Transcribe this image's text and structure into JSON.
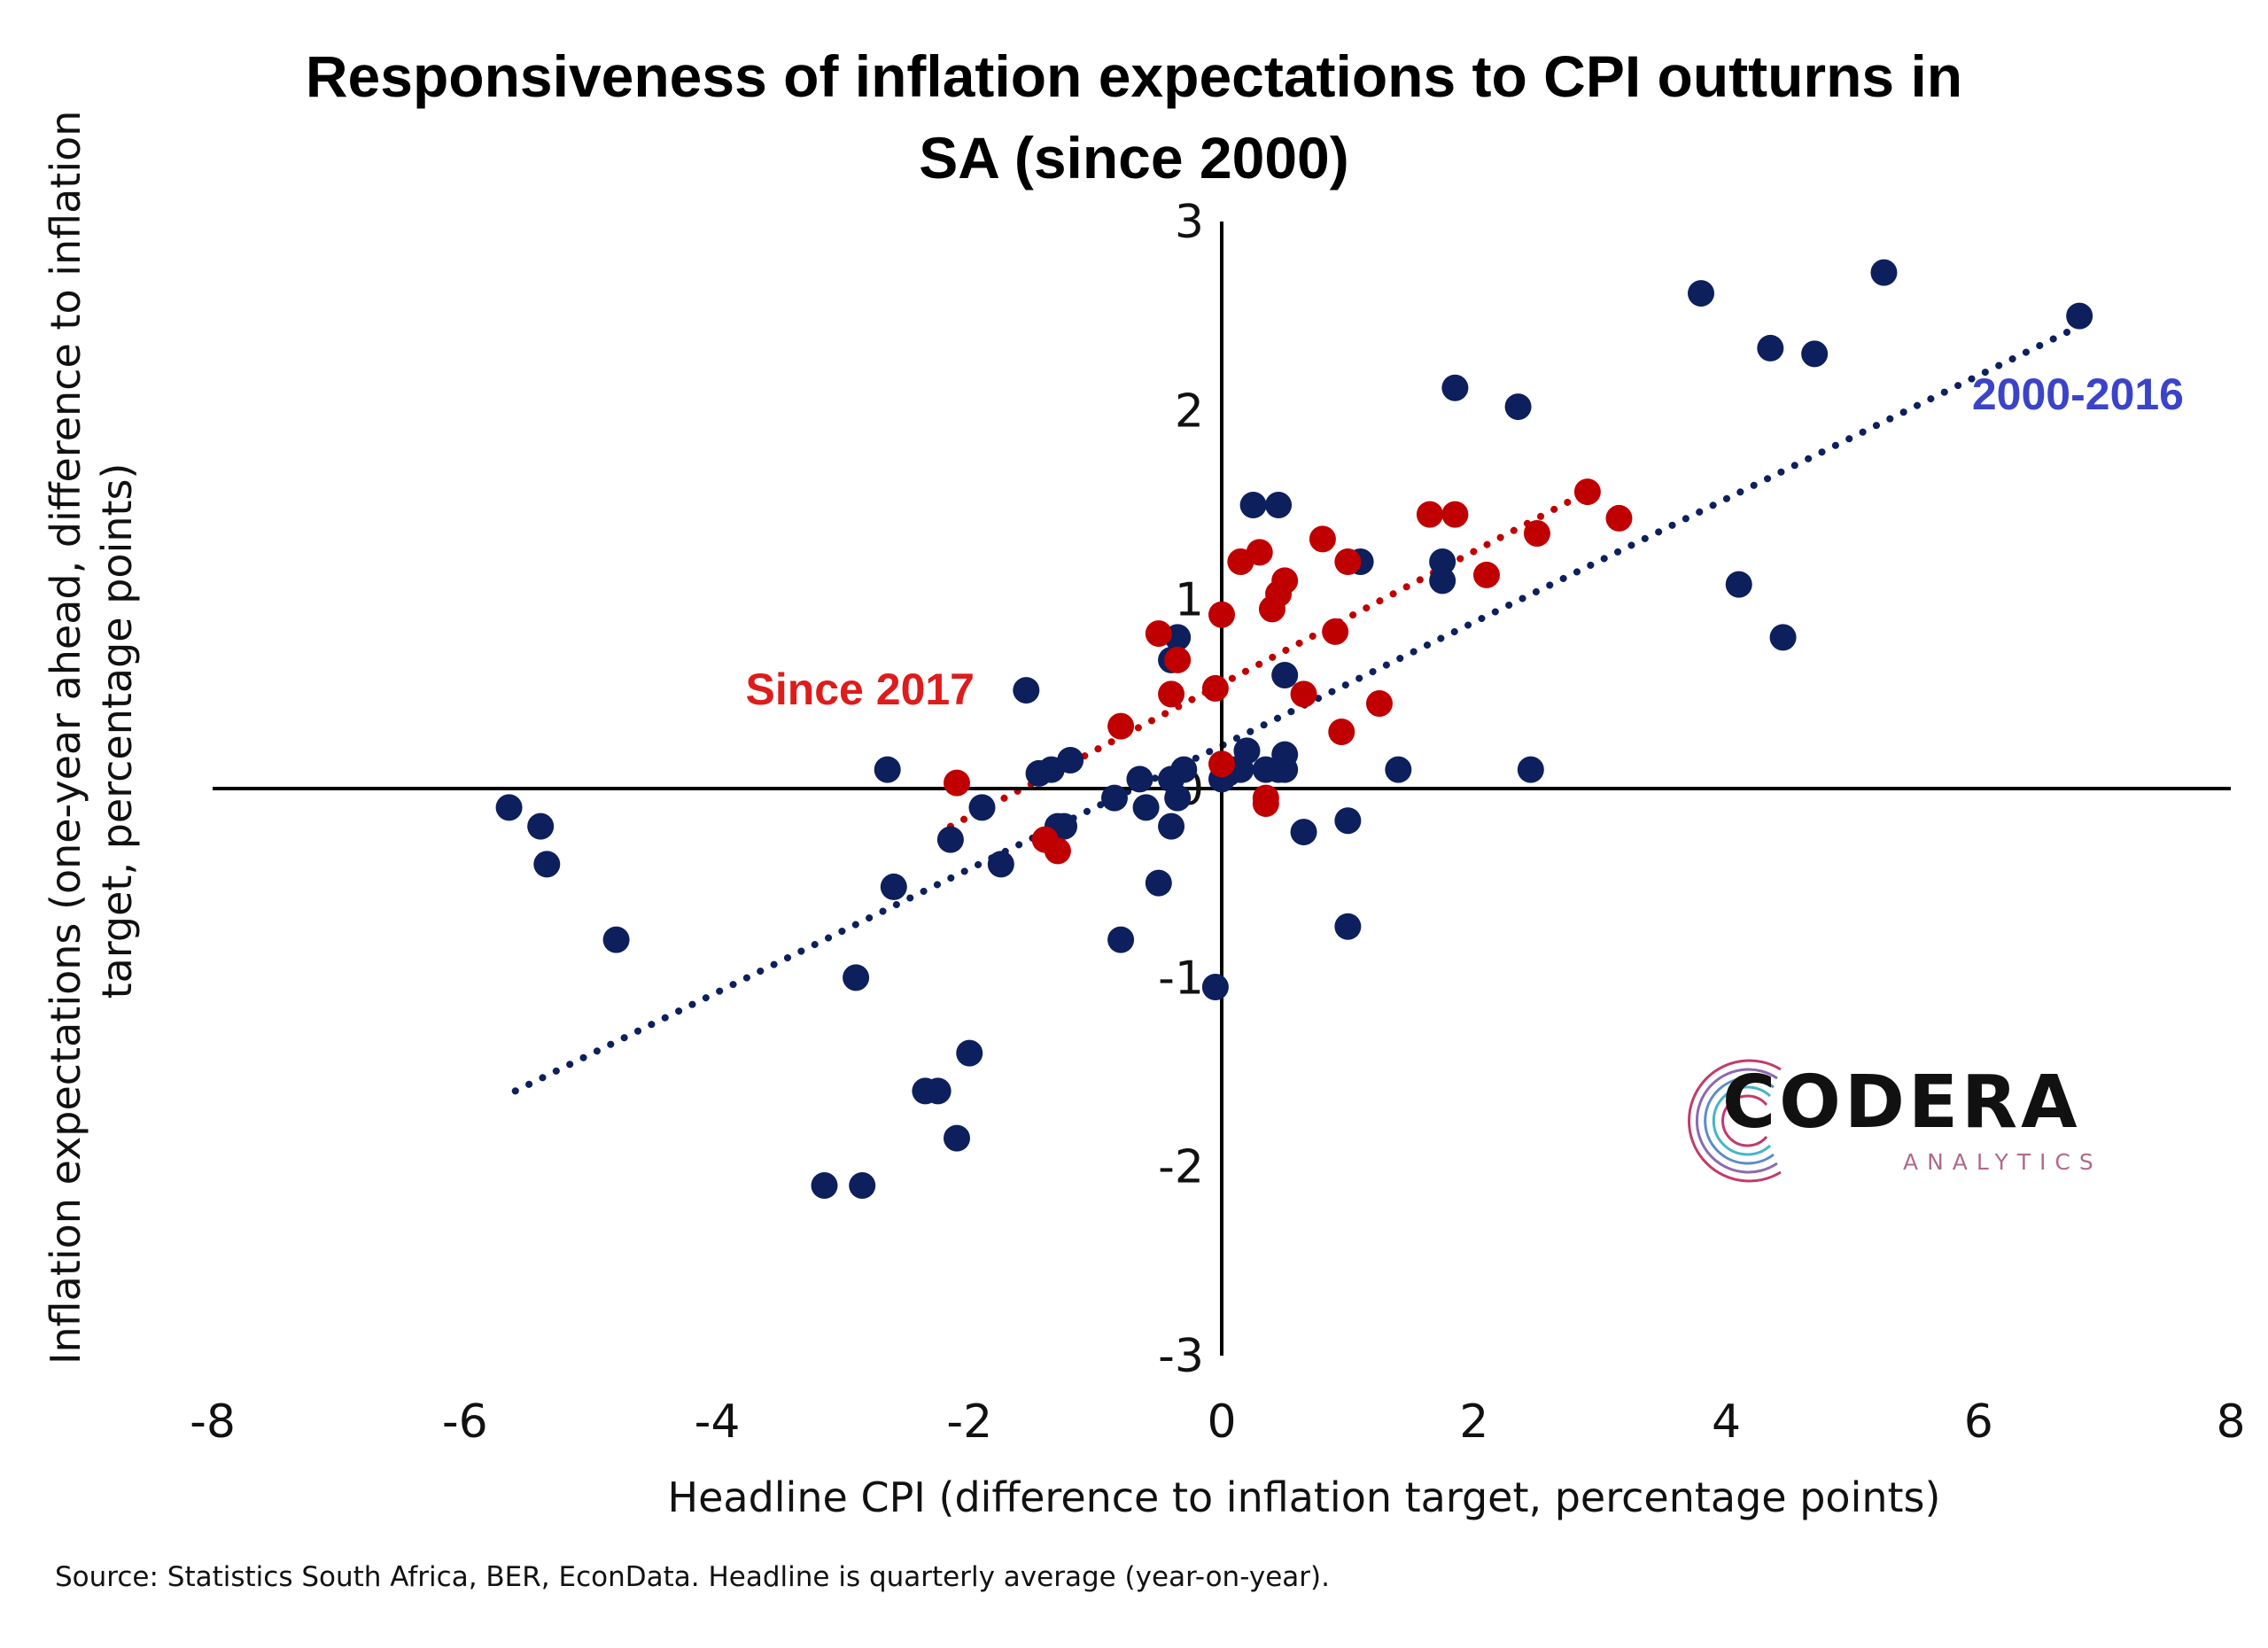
{
  "chart_data": {
    "type": "scatter",
    "title": [
      "Responsiveness of inflation expectations to CPI outturns in",
      "SA (since 2000)"
    ],
    "xlabel": "Headline CPI (difference to inflation target, percentage points)",
    "ylabel": [
      "Inflation expectations (one-year ahead, difference to inflation",
      "target, percentage points)"
    ],
    "xlim": [
      -8,
      8
    ],
    "ylim": [
      -3,
      3
    ],
    "xticks": [
      "-8",
      "-6",
      "-4",
      "-2",
      "0",
      "2",
      "4",
      "6",
      "8"
    ],
    "yticks": [
      "3",
      "2",
      "1",
      "0",
      "-1",
      "-2",
      "-3"
    ],
    "xtick_values": [
      -8,
      -6,
      -4,
      -2,
      0,
      2,
      4,
      6,
      8
    ],
    "ytick_values": [
      3,
      2,
      1,
      0,
      -1,
      -2,
      -3
    ],
    "series": [
      {
        "name": "2000-2016",
        "color": "#0d1f5c",
        "label_color": "#3b44c8",
        "trendline": [
          [
            -5.6,
            -1.6
          ],
          [
            6.75,
            2.43
          ]
        ],
        "points": [
          [
            -5.65,
            -0.1
          ],
          [
            -5.4,
            -0.2
          ],
          [
            -5.35,
            -0.4
          ],
          [
            -4.8,
            -0.8
          ],
          [
            -2.9,
            -1.0
          ],
          [
            -3.15,
            -2.1
          ],
          [
            -2.85,
            -2.1
          ],
          [
            -2.35,
            -1.6
          ],
          [
            -2.25,
            -1.6
          ],
          [
            -2.1,
            -1.85
          ],
          [
            -2.0,
            -1.4
          ],
          [
            -2.65,
            0.1
          ],
          [
            -2.6,
            -0.52
          ],
          [
            -2.15,
            -0.27
          ],
          [
            -1.9,
            -0.1
          ],
          [
            -1.75,
            -0.4
          ],
          [
            -1.55,
            0.52
          ],
          [
            -1.45,
            0.08
          ],
          [
            -1.35,
            0.1
          ],
          [
            -1.3,
            -0.2
          ],
          [
            -1.25,
            -0.2
          ],
          [
            -1.2,
            0.15
          ],
          [
            -0.85,
            -0.05
          ],
          [
            -0.8,
            -0.8
          ],
          [
            -0.65,
            0.05
          ],
          [
            -0.6,
            -0.1
          ],
          [
            -0.5,
            -0.5
          ],
          [
            -0.4,
            0.05
          ],
          [
            -0.4,
            -0.2
          ],
          [
            -0.35,
            -0.05
          ],
          [
            -0.3,
            0.1
          ],
          [
            -0.35,
            0.8
          ],
          [
            -0.4,
            0.68
          ],
          [
            -0.05,
            -1.05
          ],
          [
            0.0,
            0.05
          ],
          [
            0.05,
            0.08
          ],
          [
            0.1,
            0.1
          ],
          [
            0.15,
            0.1
          ],
          [
            0.2,
            0.2
          ],
          [
            0.25,
            1.5
          ],
          [
            0.35,
            0.1
          ],
          [
            0.45,
            1.5
          ],
          [
            0.45,
            0.1
          ],
          [
            0.5,
            0.6
          ],
          [
            0.5,
            0.18
          ],
          [
            0.5,
            0.1
          ],
          [
            0.65,
            -0.23
          ],
          [
            1.0,
            -0.17
          ],
          [
            1.0,
            -0.73
          ],
          [
            1.1,
            1.2
          ],
          [
            1.4,
            0.1
          ],
          [
            1.75,
            1.2
          ],
          [
            1.75,
            1.1
          ],
          [
            1.85,
            2.12
          ],
          [
            2.35,
            2.02
          ],
          [
            2.45,
            0.1
          ],
          [
            3.8,
            2.62
          ],
          [
            4.1,
            1.08
          ],
          [
            4.35,
            2.33
          ],
          [
            4.45,
            0.8
          ],
          [
            4.7,
            2.3
          ],
          [
            5.25,
            2.73
          ],
          [
            6.8,
            2.5
          ]
        ]
      },
      {
        "name": "Since 2017",
        "color": "#c00000",
        "label_color": "#dd1c1c",
        "trendline": [
          [
            -2.15,
            -0.2
          ],
          [
            2.9,
            1.57
          ]
        ],
        "points": [
          [
            -2.1,
            0.03
          ],
          [
            -1.4,
            -0.27
          ],
          [
            -1.3,
            -0.33
          ],
          [
            -0.8,
            0.33
          ],
          [
            -0.5,
            0.82
          ],
          [
            -0.35,
            0.68
          ],
          [
            -0.4,
            0.5
          ],
          [
            -0.05,
            0.53
          ],
          [
            0.0,
            0.92
          ],
          [
            0.0,
            0.13
          ],
          [
            0.15,
            1.2
          ],
          [
            0.3,
            1.25
          ],
          [
            0.35,
            -0.05
          ],
          [
            0.35,
            -0.08
          ],
          [
            0.4,
            0.95
          ],
          [
            0.45,
            1.03
          ],
          [
            0.5,
            1.1
          ],
          [
            0.65,
            0.5
          ],
          [
            0.8,
            1.32
          ],
          [
            0.9,
            0.83
          ],
          [
            0.95,
            0.3
          ],
          [
            1.0,
            1.2
          ],
          [
            1.25,
            0.45
          ],
          [
            1.65,
            1.45
          ],
          [
            1.85,
            1.45
          ],
          [
            2.1,
            1.13
          ],
          [
            2.5,
            1.35
          ],
          [
            2.9,
            1.57
          ],
          [
            3.15,
            1.43
          ]
        ]
      }
    ]
  },
  "source_note": "Source: Statistics South Africa, BER, EconData. Headline is quarterly average (year-on-year).",
  "logo": {
    "name": "CODERA",
    "subname": "ANALYTICS",
    "icon": "codera-arc-logo-icon"
  }
}
